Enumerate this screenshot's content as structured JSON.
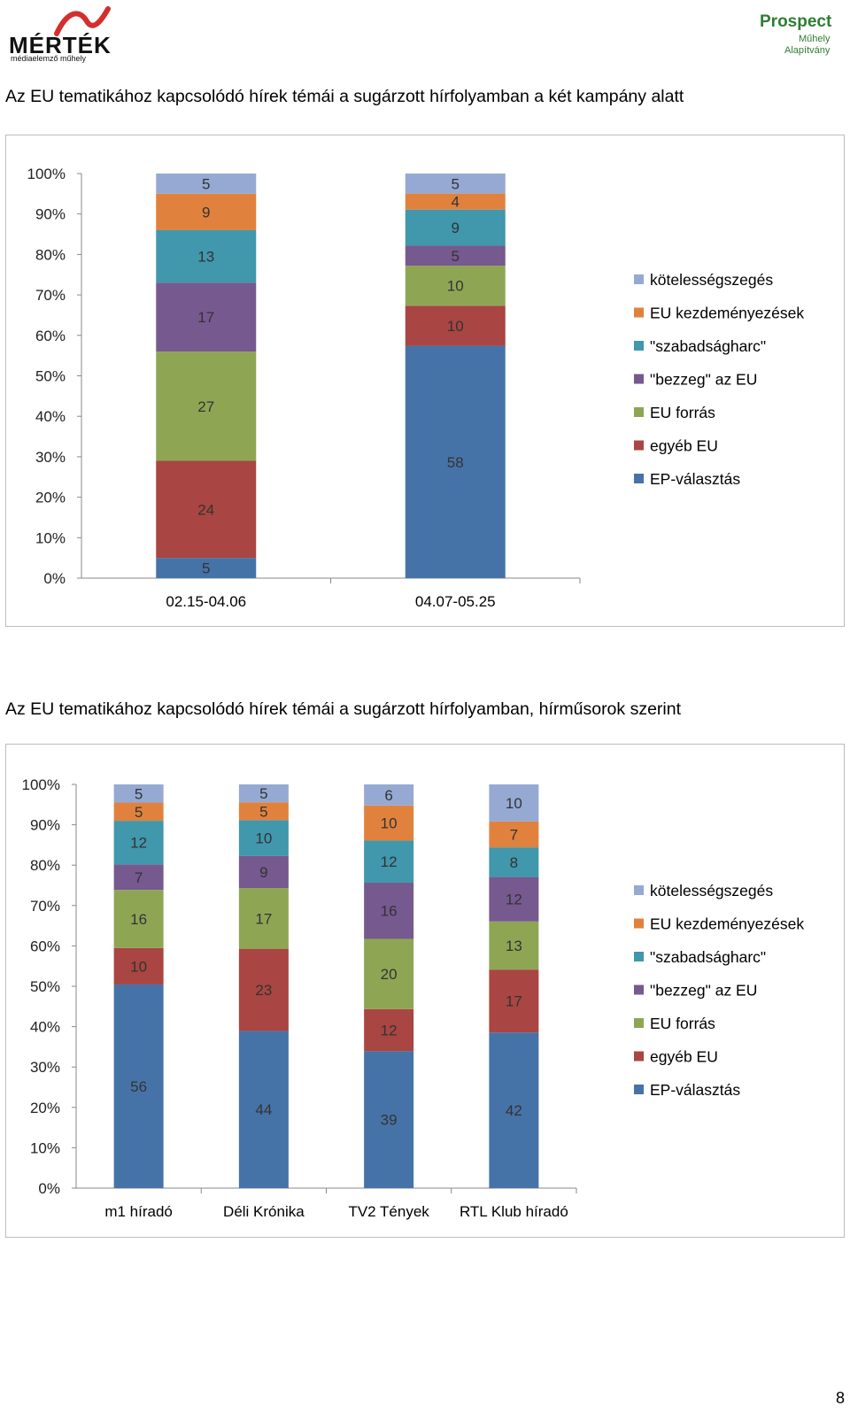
{
  "logos": {
    "left": {
      "name": "MÉRTÉK",
      "subtitle": "médiaelemző műhely"
    },
    "right": {
      "name": "Prospect",
      "subtitle1": "Műhely",
      "subtitle2": "Alapítvány"
    }
  },
  "page_number": "8",
  "colors": {
    "kötelességszegés": "#95a9d3",
    "EU kezdeményezések": "#e0823d",
    "\"szabadságharc\"": "#4197ac",
    "\"bezzeg\" az EU": "#76598f",
    "EU forrás": "#8ea654",
    "egyéb EU": "#a94542",
    "EP-választás": "#4673a7"
  },
  "chart_data": [
    {
      "type": "bar",
      "stacked": "percent",
      "title": "Az EU tematikához kapcsolódó hírek témái a sugárzott hírfolyamban a két kampány alatt",
      "categories": [
        "02.15-04.06",
        "04.07-05.25"
      ],
      "y_ticks": [
        "0%",
        "10%",
        "20%",
        "30%",
        "40%",
        "50%",
        "60%",
        "70%",
        "80%",
        "90%",
        "100%"
      ],
      "ylim": [
        0,
        100
      ],
      "legend_position": "right",
      "series": [
        {
          "name": "EP-választás",
          "values": [
            5,
            58
          ]
        },
        {
          "name": "egyéb EU",
          "values": [
            24,
            10
          ]
        },
        {
          "name": "EU forrás",
          "values": [
            27,
            10
          ]
        },
        {
          "name": "\"bezzeg\" az EU",
          "values": [
            17,
            5
          ]
        },
        {
          "name": "\"szabadságharc\"",
          "values": [
            13,
            9
          ]
        },
        {
          "name": "EU kezdeményezések",
          "values": [
            9,
            4
          ]
        },
        {
          "name": "kötelességszegés",
          "values": [
            5,
            5
          ]
        }
      ]
    },
    {
      "type": "bar",
      "stacked": "percent",
      "title": "Az EU tematikához kapcsolódó hírek témái a sugárzott hírfolyamban, hírműsorok szerint",
      "categories": [
        "m1 híradó",
        "Déli Krónika",
        "TV2 Tények",
        "RTL Klub híradó"
      ],
      "y_ticks": [
        "0%",
        "10%",
        "20%",
        "30%",
        "40%",
        "50%",
        "60%",
        "70%",
        "80%",
        "90%",
        "100%"
      ],
      "ylim": [
        0,
        100
      ],
      "legend_position": "right",
      "series": [
        {
          "name": "EP-választás",
          "values": [
            56,
            44,
            39,
            42
          ]
        },
        {
          "name": "egyéb EU",
          "values": [
            10,
            23,
            12,
            17
          ]
        },
        {
          "name": "EU forrás",
          "values": [
            16,
            17,
            20,
            13
          ]
        },
        {
          "name": "\"bezzeg\" az EU",
          "values": [
            7,
            9,
            16,
            12
          ]
        },
        {
          "name": "\"szabadságharc\"",
          "values": [
            12,
            10,
            12,
            8
          ]
        },
        {
          "name": "EU kezdeményezések",
          "values": [
            5,
            5,
            10,
            7
          ]
        },
        {
          "name": "kötelességszegés",
          "values": [
            5,
            5,
            6,
            10
          ]
        }
      ]
    }
  ]
}
